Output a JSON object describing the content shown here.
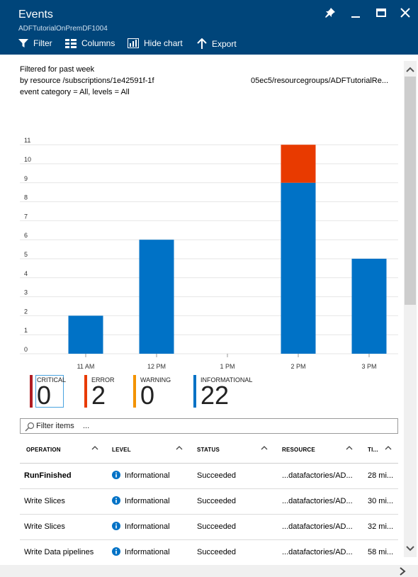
{
  "header": {
    "title": "Events",
    "subtitle": "ADFTutorialOnPremDF1004",
    "toolbar": {
      "filter": "Filter",
      "columns": "Columns",
      "hide_chart": "Hide chart",
      "export": "Export"
    }
  },
  "summary": {
    "line1": "Filtered for past week",
    "line2_left": "by resource /subscriptions/1e42591f-1f",
    "line2_right": "05ec5/resourcegroups/ADFTutorialRe...",
    "line3": "event category = All, levels = All"
  },
  "chart_data": {
    "type": "bar",
    "stacked": true,
    "categories": [
      "11 AM",
      "12 PM",
      "1 PM",
      "2 PM",
      "3 PM"
    ],
    "series": [
      {
        "name": "INFORMATIONAL",
        "color": "#0072c6",
        "values": [
          2,
          6,
          0,
          9,
          5
        ]
      },
      {
        "name": "ERROR",
        "color": "#e83a00",
        "values": [
          0,
          0,
          0,
          2,
          0
        ]
      }
    ],
    "yticks": [
      "0",
      "1",
      "2",
      "3",
      "4",
      "5",
      "6",
      "7",
      "8",
      "9",
      "10",
      "11"
    ],
    "ylim": [
      0,
      11
    ],
    "grid": true
  },
  "counters": [
    {
      "label": "CRITICAL",
      "value": "0",
      "color": "#b01e24"
    },
    {
      "label": "ERROR",
      "value": "2",
      "color": "#e83a00"
    },
    {
      "label": "WARNING",
      "value": "0",
      "color": "#f39200"
    },
    {
      "label": "INFORMATIONAL",
      "value": "22",
      "color": "#0072c6"
    }
  ],
  "filter": {
    "placeholder": "Filter items    ..."
  },
  "table": {
    "headers": [
      "OPERATION",
      "LEVEL",
      "STATUS",
      "RESOURCE",
      "TI..."
    ],
    "rows": [
      {
        "operation": "RunFinished",
        "level": "Informational",
        "status": "Succeeded",
        "resource": "...datafactories/AD...",
        "time": "28 mi..."
      },
      {
        "operation": "Write Slices",
        "level": "Informational",
        "status": "Succeeded",
        "resource": "...datafactories/AD...",
        "time": "30 mi..."
      },
      {
        "operation": "Write Slices",
        "level": "Informational",
        "status": "Succeeded",
        "resource": "...datafactories/AD...",
        "time": "32 mi..."
      },
      {
        "operation": "Write Data pipelines",
        "level": "Informational",
        "status": "Succeeded",
        "resource": "...datafactories/AD...",
        "time": "58 mi..."
      }
    ]
  }
}
